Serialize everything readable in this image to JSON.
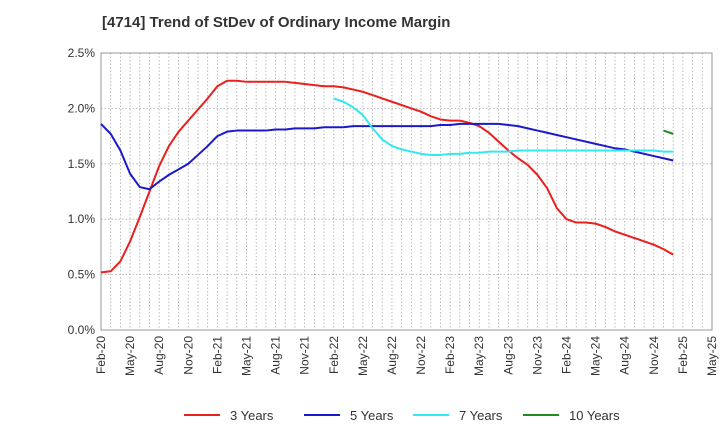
{
  "chart_data": {
    "type": "line",
    "title": "[4714]  Trend of StDev of Ordinary Income Margin",
    "xlabel": "",
    "ylabel": "",
    "x_tick_labels": [
      "Feb-20",
      "May-20",
      "Aug-20",
      "Nov-20",
      "Feb-21",
      "May-21",
      "Aug-21",
      "Nov-21",
      "Feb-22",
      "May-22",
      "Aug-22",
      "Nov-22",
      "Feb-23",
      "May-23",
      "Aug-23",
      "Nov-23",
      "Feb-24",
      "May-24",
      "Aug-24",
      "Nov-24",
      "Feb-25",
      "May-25"
    ],
    "y_tick_labels": [
      "0.0%",
      "0.5%",
      "1.0%",
      "1.5%",
      "2.0%",
      "2.5%"
    ],
    "ylim": [
      0,
      2.5
    ],
    "y_unit": "%",
    "x_range_months": [
      "2020-02",
      "2025-05"
    ],
    "grid": "dotted vertical lines monthly, dotted horizontal lines",
    "legend_position": "bottom",
    "series": [
      {
        "name": "3 Years",
        "color": "#e8201e",
        "points": [
          [
            "2020-02",
            0.52
          ],
          [
            "2020-03",
            0.53
          ],
          [
            "2020-04",
            0.62
          ],
          [
            "2020-05",
            0.8
          ],
          [
            "2020-06",
            1.02
          ],
          [
            "2020-07",
            1.25
          ],
          [
            "2020-08",
            1.48
          ],
          [
            "2020-09",
            1.66
          ],
          [
            "2020-10",
            1.79
          ],
          [
            "2020-11",
            1.89
          ],
          [
            "2020-12",
            1.99
          ],
          [
            "2021-01",
            2.09
          ],
          [
            "2021-02",
            2.2
          ],
          [
            "2021-03",
            2.25
          ],
          [
            "2021-04",
            2.25
          ],
          [
            "2021-05",
            2.24
          ],
          [
            "2021-06",
            2.24
          ],
          [
            "2021-07",
            2.24
          ],
          [
            "2021-08",
            2.24
          ],
          [
            "2021-09",
            2.24
          ],
          [
            "2021-10",
            2.23
          ],
          [
            "2021-11",
            2.22
          ],
          [
            "2021-12",
            2.21
          ],
          [
            "2022-01",
            2.2
          ],
          [
            "2022-02",
            2.2
          ],
          [
            "2022-03",
            2.19
          ],
          [
            "2022-04",
            2.17
          ],
          [
            "2022-05",
            2.15
          ],
          [
            "2022-06",
            2.12
          ],
          [
            "2022-07",
            2.09
          ],
          [
            "2022-08",
            2.06
          ],
          [
            "2022-09",
            2.03
          ],
          [
            "2022-10",
            2.0
          ],
          [
            "2022-11",
            1.97
          ],
          [
            "2022-12",
            1.93
          ],
          [
            "2023-01",
            1.9
          ],
          [
            "2023-02",
            1.89
          ],
          [
            "2023-03",
            1.89
          ],
          [
            "2023-04",
            1.87
          ],
          [
            "2023-05",
            1.84
          ],
          [
            "2023-06",
            1.78
          ],
          [
            "2023-07",
            1.7
          ],
          [
            "2023-08",
            1.62
          ],
          [
            "2023-09",
            1.55
          ],
          [
            "2023-10",
            1.49
          ],
          [
            "2023-11",
            1.4
          ],
          [
            "2023-12",
            1.28
          ],
          [
            "2024-01",
            1.1
          ],
          [
            "2024-02",
            1.0
          ],
          [
            "2024-03",
            0.97
          ],
          [
            "2024-04",
            0.97
          ],
          [
            "2024-05",
            0.96
          ],
          [
            "2024-06",
            0.93
          ],
          [
            "2024-07",
            0.89
          ],
          [
            "2024-08",
            0.86
          ],
          [
            "2024-09",
            0.83
          ],
          [
            "2024-10",
            0.8
          ],
          [
            "2024-11",
            0.77
          ],
          [
            "2024-12",
            0.73
          ],
          [
            "2025-01",
            0.68
          ]
        ]
      },
      {
        "name": "5 Years",
        "color": "#1a1acc",
        "points": [
          [
            "2020-02",
            1.86
          ],
          [
            "2020-03",
            1.77
          ],
          [
            "2020-04",
            1.62
          ],
          [
            "2020-05",
            1.41
          ],
          [
            "2020-06",
            1.29
          ],
          [
            "2020-07",
            1.27
          ],
          [
            "2020-08",
            1.34
          ],
          [
            "2020-09",
            1.4
          ],
          [
            "2020-10",
            1.45
          ],
          [
            "2020-11",
            1.5
          ],
          [
            "2020-12",
            1.58
          ],
          [
            "2021-01",
            1.66
          ],
          [
            "2021-02",
            1.75
          ],
          [
            "2021-03",
            1.79
          ],
          [
            "2021-04",
            1.8
          ],
          [
            "2021-05",
            1.8
          ],
          [
            "2021-06",
            1.8
          ],
          [
            "2021-07",
            1.8
          ],
          [
            "2021-08",
            1.81
          ],
          [
            "2021-09",
            1.81
          ],
          [
            "2021-10",
            1.82
          ],
          [
            "2021-11",
            1.82
          ],
          [
            "2021-12",
            1.82
          ],
          [
            "2022-01",
            1.83
          ],
          [
            "2022-02",
            1.83
          ],
          [
            "2022-03",
            1.83
          ],
          [
            "2022-04",
            1.84
          ],
          [
            "2022-05",
            1.84
          ],
          [
            "2022-06",
            1.84
          ],
          [
            "2022-07",
            1.84
          ],
          [
            "2022-08",
            1.84
          ],
          [
            "2022-09",
            1.84
          ],
          [
            "2022-10",
            1.84
          ],
          [
            "2022-11",
            1.84
          ],
          [
            "2022-12",
            1.84
          ],
          [
            "2023-01",
            1.85
          ],
          [
            "2023-02",
            1.85
          ],
          [
            "2023-03",
            1.86
          ],
          [
            "2023-04",
            1.86
          ],
          [
            "2023-05",
            1.86
          ],
          [
            "2023-06",
            1.86
          ],
          [
            "2023-07",
            1.86
          ],
          [
            "2023-08",
            1.85
          ],
          [
            "2023-09",
            1.84
          ],
          [
            "2023-10",
            1.82
          ],
          [
            "2023-11",
            1.8
          ],
          [
            "2023-12",
            1.78
          ],
          [
            "2024-01",
            1.76
          ],
          [
            "2024-02",
            1.74
          ],
          [
            "2024-03",
            1.72
          ],
          [
            "2024-04",
            1.7
          ],
          [
            "2024-05",
            1.68
          ],
          [
            "2024-06",
            1.66
          ],
          [
            "2024-07",
            1.64
          ],
          [
            "2024-08",
            1.63
          ],
          [
            "2024-09",
            1.61
          ],
          [
            "2024-10",
            1.59
          ],
          [
            "2024-11",
            1.57
          ],
          [
            "2024-12",
            1.55
          ],
          [
            "2025-01",
            1.53
          ]
        ]
      },
      {
        "name": "7 Years",
        "color": "#33e8f0",
        "points": [
          [
            "2022-02",
            2.09
          ],
          [
            "2022-03",
            2.06
          ],
          [
            "2022-04",
            2.01
          ],
          [
            "2022-05",
            1.94
          ],
          [
            "2022-06",
            1.82
          ],
          [
            "2022-07",
            1.72
          ],
          [
            "2022-08",
            1.66
          ],
          [
            "2022-09",
            1.63
          ],
          [
            "2022-10",
            1.61
          ],
          [
            "2022-11",
            1.59
          ],
          [
            "2022-12",
            1.58
          ],
          [
            "2023-01",
            1.58
          ],
          [
            "2023-02",
            1.59
          ],
          [
            "2023-03",
            1.59
          ],
          [
            "2023-04",
            1.6
          ],
          [
            "2023-05",
            1.6
          ],
          [
            "2023-06",
            1.61
          ],
          [
            "2023-07",
            1.61
          ],
          [
            "2023-08",
            1.61
          ],
          [
            "2023-09",
            1.62
          ],
          [
            "2023-10",
            1.62
          ],
          [
            "2023-11",
            1.62
          ],
          [
            "2023-12",
            1.62
          ],
          [
            "2024-01",
            1.62
          ],
          [
            "2024-02",
            1.62
          ],
          [
            "2024-03",
            1.62
          ],
          [
            "2024-04",
            1.62
          ],
          [
            "2024-05",
            1.62
          ],
          [
            "2024-06",
            1.62
          ],
          [
            "2024-07",
            1.62
          ],
          [
            "2024-08",
            1.62
          ],
          [
            "2024-09",
            1.62
          ],
          [
            "2024-10",
            1.62
          ],
          [
            "2024-11",
            1.62
          ],
          [
            "2024-12",
            1.61
          ],
          [
            "2025-01",
            1.61
          ]
        ]
      },
      {
        "name": "10 Years",
        "color": "#228b22",
        "points": [
          [
            "2024-12",
            1.8
          ],
          [
            "2025-01",
            1.77
          ]
        ]
      }
    ]
  }
}
